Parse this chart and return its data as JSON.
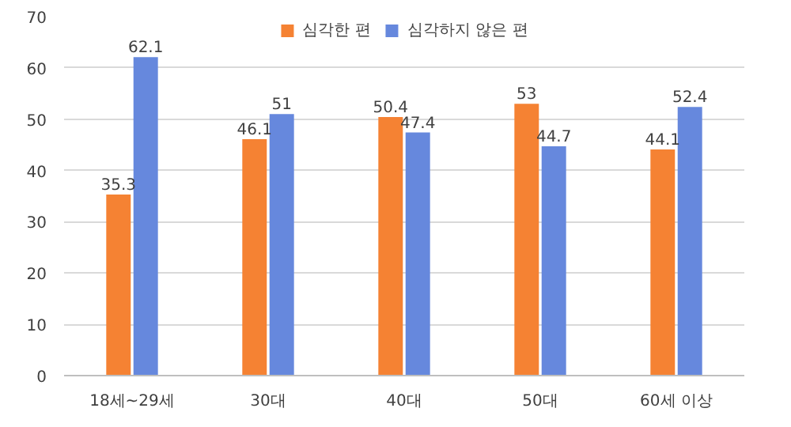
{
  "chart_data": {
    "type": "bar",
    "categories": [
      "18세~29세",
      "30대",
      "40대",
      "50대",
      "60세 이상"
    ],
    "series": [
      {
        "name": "심각한 편",
        "color": "#f58233",
        "values": [
          35.3,
          46.1,
          50.4,
          53,
          44.1
        ]
      },
      {
        "name": "심각하지 않은 편",
        "color": "#6688dd",
        "values": [
          62.1,
          51,
          47.4,
          44.7,
          52.4
        ]
      }
    ],
    "ylim": [
      0,
      70
    ],
    "yticks": [
      0,
      10,
      20,
      30,
      40,
      50,
      60,
      70
    ],
    "grid": "y",
    "legend": "top",
    "data_labels": true
  }
}
